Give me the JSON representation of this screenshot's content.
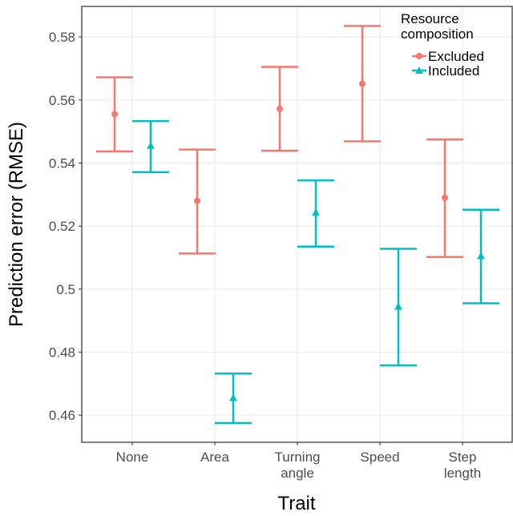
{
  "chart_data": {
    "type": "errorbar",
    "x_label": "Trait",
    "y_label": "Prediction error (RMSE)",
    "legend_title": "Resource composition",
    "categories": [
      "None",
      "Area",
      "Turning angle",
      "Speed",
      "Step length"
    ],
    "series": [
      {
        "name": "Excluded",
        "color": "#f8766d",
        "marker": "circle",
        "values": [
          0.5555,
          0.528,
          0.5572,
          0.5652,
          0.529
        ],
        "lower": [
          0.5437,
          0.5113,
          0.5439,
          0.5469,
          0.5102
        ],
        "upper": [
          0.5672,
          0.5443,
          0.5705,
          0.5835,
          0.5475
        ]
      },
      {
        "name": "Included",
        "color": "#00bfc4",
        "marker": "triangle",
        "values": [
          0.5455,
          0.4655,
          0.5243,
          0.4945,
          0.5105
        ],
        "lower": [
          0.5371,
          0.4575,
          0.5135,
          0.4758,
          0.4955
        ],
        "upper": [
          0.5533,
          0.4732,
          0.5345,
          0.5128,
          0.5252
        ]
      }
    ],
    "ylim": [
      0.4514,
      0.5897
    ],
    "yticks": [
      0.46,
      0.48,
      0.5,
      0.52,
      0.54,
      0.56,
      0.58
    ],
    "grid": true,
    "legend_position": "top-right"
  }
}
